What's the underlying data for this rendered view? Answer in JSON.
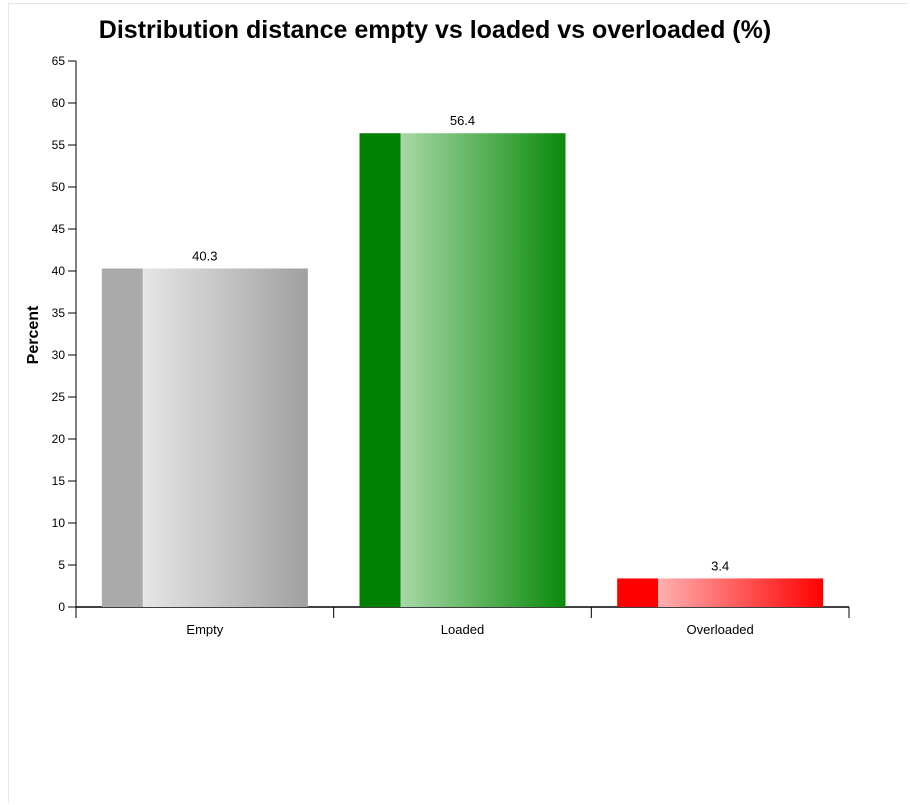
{
  "chart_data": {
    "type": "bar",
    "title": "Distribution distance empty vs loaded vs overloaded (%)",
    "xlabel": "",
    "ylabel": "Percent",
    "categories": [
      "Empty",
      "Loaded",
      "Overloaded"
    ],
    "values": [
      40.3,
      56.4,
      3.4
    ],
    "value_labels": [
      "40.3",
      "56.4",
      "3.4"
    ],
    "ylim": [
      0,
      65
    ],
    "yticks": [
      "0",
      "5",
      "10",
      "15",
      "20",
      "25",
      "30",
      "35",
      "40",
      "45",
      "50",
      "55",
      "60",
      "65"
    ],
    "grid": false,
    "legend": "none",
    "colors": [
      {
        "dark": "#aaaaaa",
        "light": "#e6e6e6",
        "end": "#a0a0a0"
      },
      {
        "dark": "#008000",
        "light": "#a8d8a8",
        "end": "#0a8a0a"
      },
      {
        "dark": "#ff0000",
        "light": "#ffb0b0",
        "end": "#ff0000"
      }
    ]
  }
}
